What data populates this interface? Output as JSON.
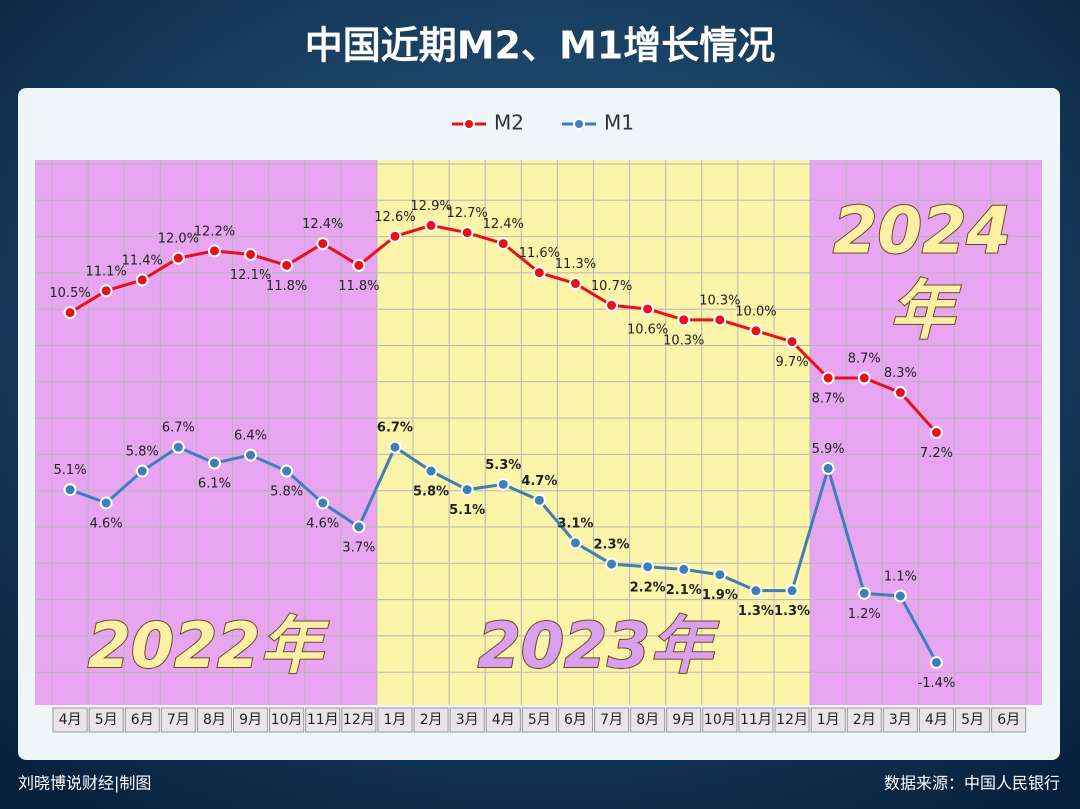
{
  "chart_data": {
    "type": "line",
    "title": "中国近期M2、M1增长情况",
    "categories": [
      "4月",
      "5月",
      "6月",
      "7月",
      "8月",
      "9月",
      "10月",
      "11月",
      "12月",
      "1月",
      "2月",
      "3月",
      "4月",
      "5月",
      "6月",
      "7月",
      "8月",
      "9月",
      "10月",
      "11月",
      "12月",
      "1月",
      "2月",
      "3月",
      "4月",
      "5月",
      "6月"
    ],
    "series": [
      {
        "name": "M2",
        "color": "#e8101a",
        "values": [
          10.5,
          11.1,
          11.4,
          12.0,
          12.2,
          12.1,
          11.8,
          12.4,
          11.8,
          12.6,
          12.9,
          12.7,
          12.4,
          11.6,
          11.3,
          10.7,
          10.6,
          10.3,
          10.3,
          10.0,
          9.7,
          8.7,
          8.7,
          8.3,
          7.2,
          null,
          null
        ],
        "value_labels": [
          "10.5%",
          "11.1%",
          "11.4%",
          "12.0%",
          "12.2%",
          "12.1%",
          "11.8%",
          "12.4%",
          "11.8%",
          "12.6%",
          "12.9%",
          "12.7%",
          "12.4%",
          "11.6%",
          "11.3%",
          "10.7%",
          "10.6%",
          "10.3%",
          "10.3%",
          "10.0%",
          "9.7%",
          "8.7%",
          "8.7%",
          "8.3%",
          "7.2%",
          null,
          null
        ]
      },
      {
        "name": "M1",
        "color": "#3f7fb8",
        "axis": "y2",
        "values": [
          5.1,
          4.6,
          5.8,
          6.7,
          6.1,
          6.4,
          5.8,
          4.6,
          3.7,
          6.7,
          5.8,
          5.1,
          5.3,
          4.7,
          3.1,
          2.3,
          2.2,
          2.1,
          1.9,
          1.3,
          1.3,
          5.9,
          1.2,
          1.1,
          -1.4,
          null,
          null
        ],
        "value_labels": [
          "5.1%",
          "4.6%",
          "5.8%",
          "6.7%",
          "6.1%",
          "6.4%",
          "5.8%",
          "4.6%",
          "3.7%",
          "6.7%",
          "5.8%",
          "5.1%",
          "5.3%",
          "4.7%",
          "3.1%",
          "2.3%",
          "2.2%",
          "2.1%",
          "1.9%",
          "1.3%",
          "1.3%",
          "5.9%",
          "1.2%",
          "1.1%",
          "-1.4%",
          null,
          null
        ]
      }
    ],
    "ylim": [
      -0.3,
      14.7
    ],
    "y2lim": [
      -3.0,
      17.5
    ],
    "grid": true,
    "legend": "top",
    "annotations": [
      "2022年",
      "2023年",
      "2024",
      "年"
    ],
    "footer_left": "刘晓博说财经|制图",
    "source": "数据来源：中国人民银行"
  }
}
